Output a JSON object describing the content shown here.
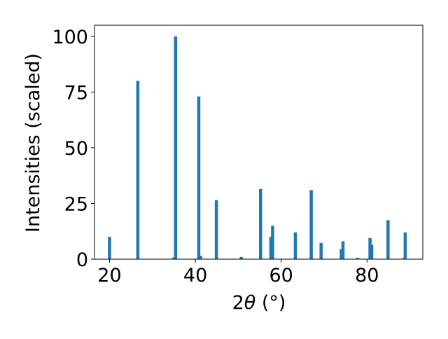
{
  "chart_data": {
    "type": "bar",
    "title": "",
    "xlabel_prefix": "2",
    "xlabel_theta": "θ",
    "xlabel_suffix": " (°)",
    "ylabel": "Intensities (scaled)",
    "xlim": [
      16.5,
      93.0
    ],
    "ylim": [
      0,
      105
    ],
    "xticks": [
      20,
      40,
      60,
      80
    ],
    "yticks": [
      0,
      25,
      50,
      75,
      100
    ],
    "bar_color": "#1f77b4",
    "grid": false,
    "points": [
      {
        "x": 20.0,
        "y": 10.0
      },
      {
        "x": 26.6,
        "y": 80.0
      },
      {
        "x": 35.0,
        "y": 0.8
      },
      {
        "x": 35.4,
        "y": 100.0
      },
      {
        "x": 40.8,
        "y": 73.0
      },
      {
        "x": 41.2,
        "y": 1.5
      },
      {
        "x": 44.9,
        "y": 26.5
      },
      {
        "x": 50.7,
        "y": 1.0
      },
      {
        "x": 55.2,
        "y": 31.5
      },
      {
        "x": 57.6,
        "y": 10.0
      },
      {
        "x": 58.0,
        "y": 15.0
      },
      {
        "x": 63.3,
        "y": 12.0
      },
      {
        "x": 67.0,
        "y": 31.0
      },
      {
        "x": 69.3,
        "y": 7.3
      },
      {
        "x": 74.0,
        "y": 4.5
      },
      {
        "x": 74.4,
        "y": 8.0
      },
      {
        "x": 77.8,
        "y": 0.6
      },
      {
        "x": 80.7,
        "y": 9.5
      },
      {
        "x": 81.1,
        "y": 6.5
      },
      {
        "x": 84.9,
        "y": 17.5
      },
      {
        "x": 88.6,
        "y": 0.5
      },
      {
        "x": 88.9,
        "y": 12.0
      }
    ]
  }
}
